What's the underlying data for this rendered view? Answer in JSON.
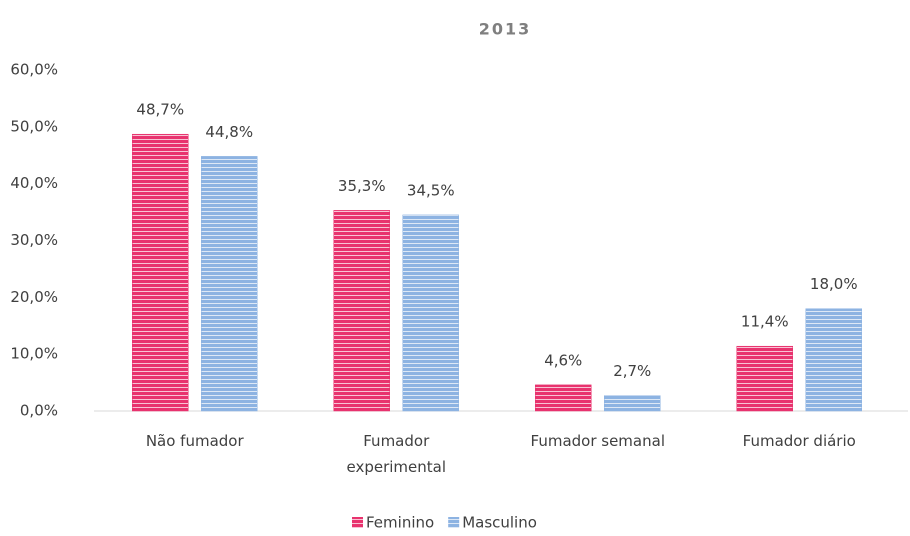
{
  "chart_data": {
    "type": "bar",
    "title": "2013",
    "categories": [
      "Não fumador",
      "Fumador experimental",
      "Fumador semanal",
      "Fumador diário"
    ],
    "series": [
      {
        "name": "Feminino",
        "color": "#e8336e",
        "values": [
          48.7,
          35.3,
          4.6,
          11.4
        ],
        "value_labels": [
          "48,7%",
          "35,3%",
          "4,6%",
          "11,4%"
        ]
      },
      {
        "name": "Masculino",
        "color": "#8db3e2",
        "values": [
          44.8,
          34.5,
          2.7,
          18.0
        ],
        "value_labels": [
          "44,8%",
          "34,5%",
          "2,7%",
          "18,0%"
        ]
      }
    ],
    "ylim": [
      0,
      60
    ],
    "yticks": [
      {
        "value": 0,
        "label": "0,0%"
      },
      {
        "value": 10,
        "label": "10,0%"
      },
      {
        "value": 20,
        "label": "20,0%"
      },
      {
        "value": 30,
        "label": "30,0%"
      },
      {
        "value": 40,
        "label": "40,0%"
      },
      {
        "value": 50,
        "label": "50,0%"
      },
      {
        "value": 60,
        "label": "60,0%"
      }
    ],
    "grid": false,
    "legend": "bottom"
  }
}
